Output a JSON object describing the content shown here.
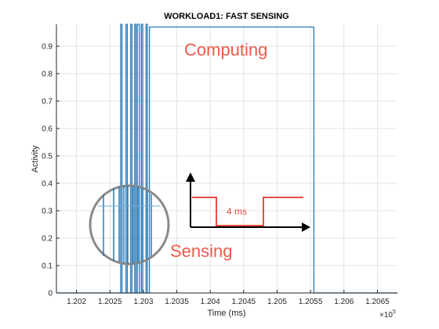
{
  "chart_data": {
    "type": "line",
    "title": "WORKLOAD1: FAST SENSING",
    "xlabel": "Time (ms)",
    "ylabel": "Activity",
    "x_exponent_label": "×10",
    "x_exponent_power": "5",
    "xlim": [
      1.2017,
      1.2068
    ],
    "ylim": [
      0,
      0.98
    ],
    "x_ticks": [
      1.202,
      1.2025,
      1.203,
      1.2035,
      1.204,
      1.2045,
      1.205,
      1.2055,
      1.206,
      1.2065
    ],
    "x_tick_labels": [
      "1.202",
      "1.2025",
      "1.203",
      "1.2035",
      "1.204",
      "1.2045",
      "1.205",
      "1.2055",
      "1.206",
      "1.2065"
    ],
    "y_ticks": [
      0,
      0.1,
      0.2,
      0.3,
      0.4,
      0.5,
      0.6,
      0.7,
      0.8,
      0.9
    ],
    "y_tick_labels": [
      "0",
      "0.1",
      "0.2",
      "0.3",
      "0.4",
      "0.5",
      "0.6",
      "0.7",
      "0.8",
      "0.9"
    ],
    "grid": true,
    "line_color": "#2b7bb9",
    "annotation_color": "#ec5b4c",
    "series": [
      {
        "x": [
          1.2017,
          1.20266,
          1.20266,
          1.20268,
          1.20268,
          1.20274,
          1.20274,
          1.20276,
          1.20276,
          1.20281,
          1.20281,
          1.20283,
          1.20283,
          1.20287,
          1.20287,
          1.20289,
          1.20289,
          1.20291,
          1.20291,
          1.20294,
          1.20294,
          1.20297,
          1.20297,
          1.20299,
          1.20299,
          1.20304,
          1.20304,
          1.20306,
          1.20306,
          1.20309,
          1.20309,
          1.20555,
          1.20555,
          1.2068
        ],
        "y": [
          0,
          0,
          0.98,
          0.98,
          0,
          0,
          0.98,
          0.98,
          0,
          0,
          0.98,
          0.98,
          0,
          0,
          0.98,
          0.98,
          0,
          0,
          0.98,
          0.98,
          0,
          0,
          0.98,
          0.98,
          0,
          0,
          0.98,
          0.98,
          0,
          0,
          0.97,
          0.97,
          0,
          0
        ]
      }
    ],
    "annotations": {
      "computing": "Computing",
      "sensing": "Sensing",
      "period": "4 ms"
    }
  }
}
